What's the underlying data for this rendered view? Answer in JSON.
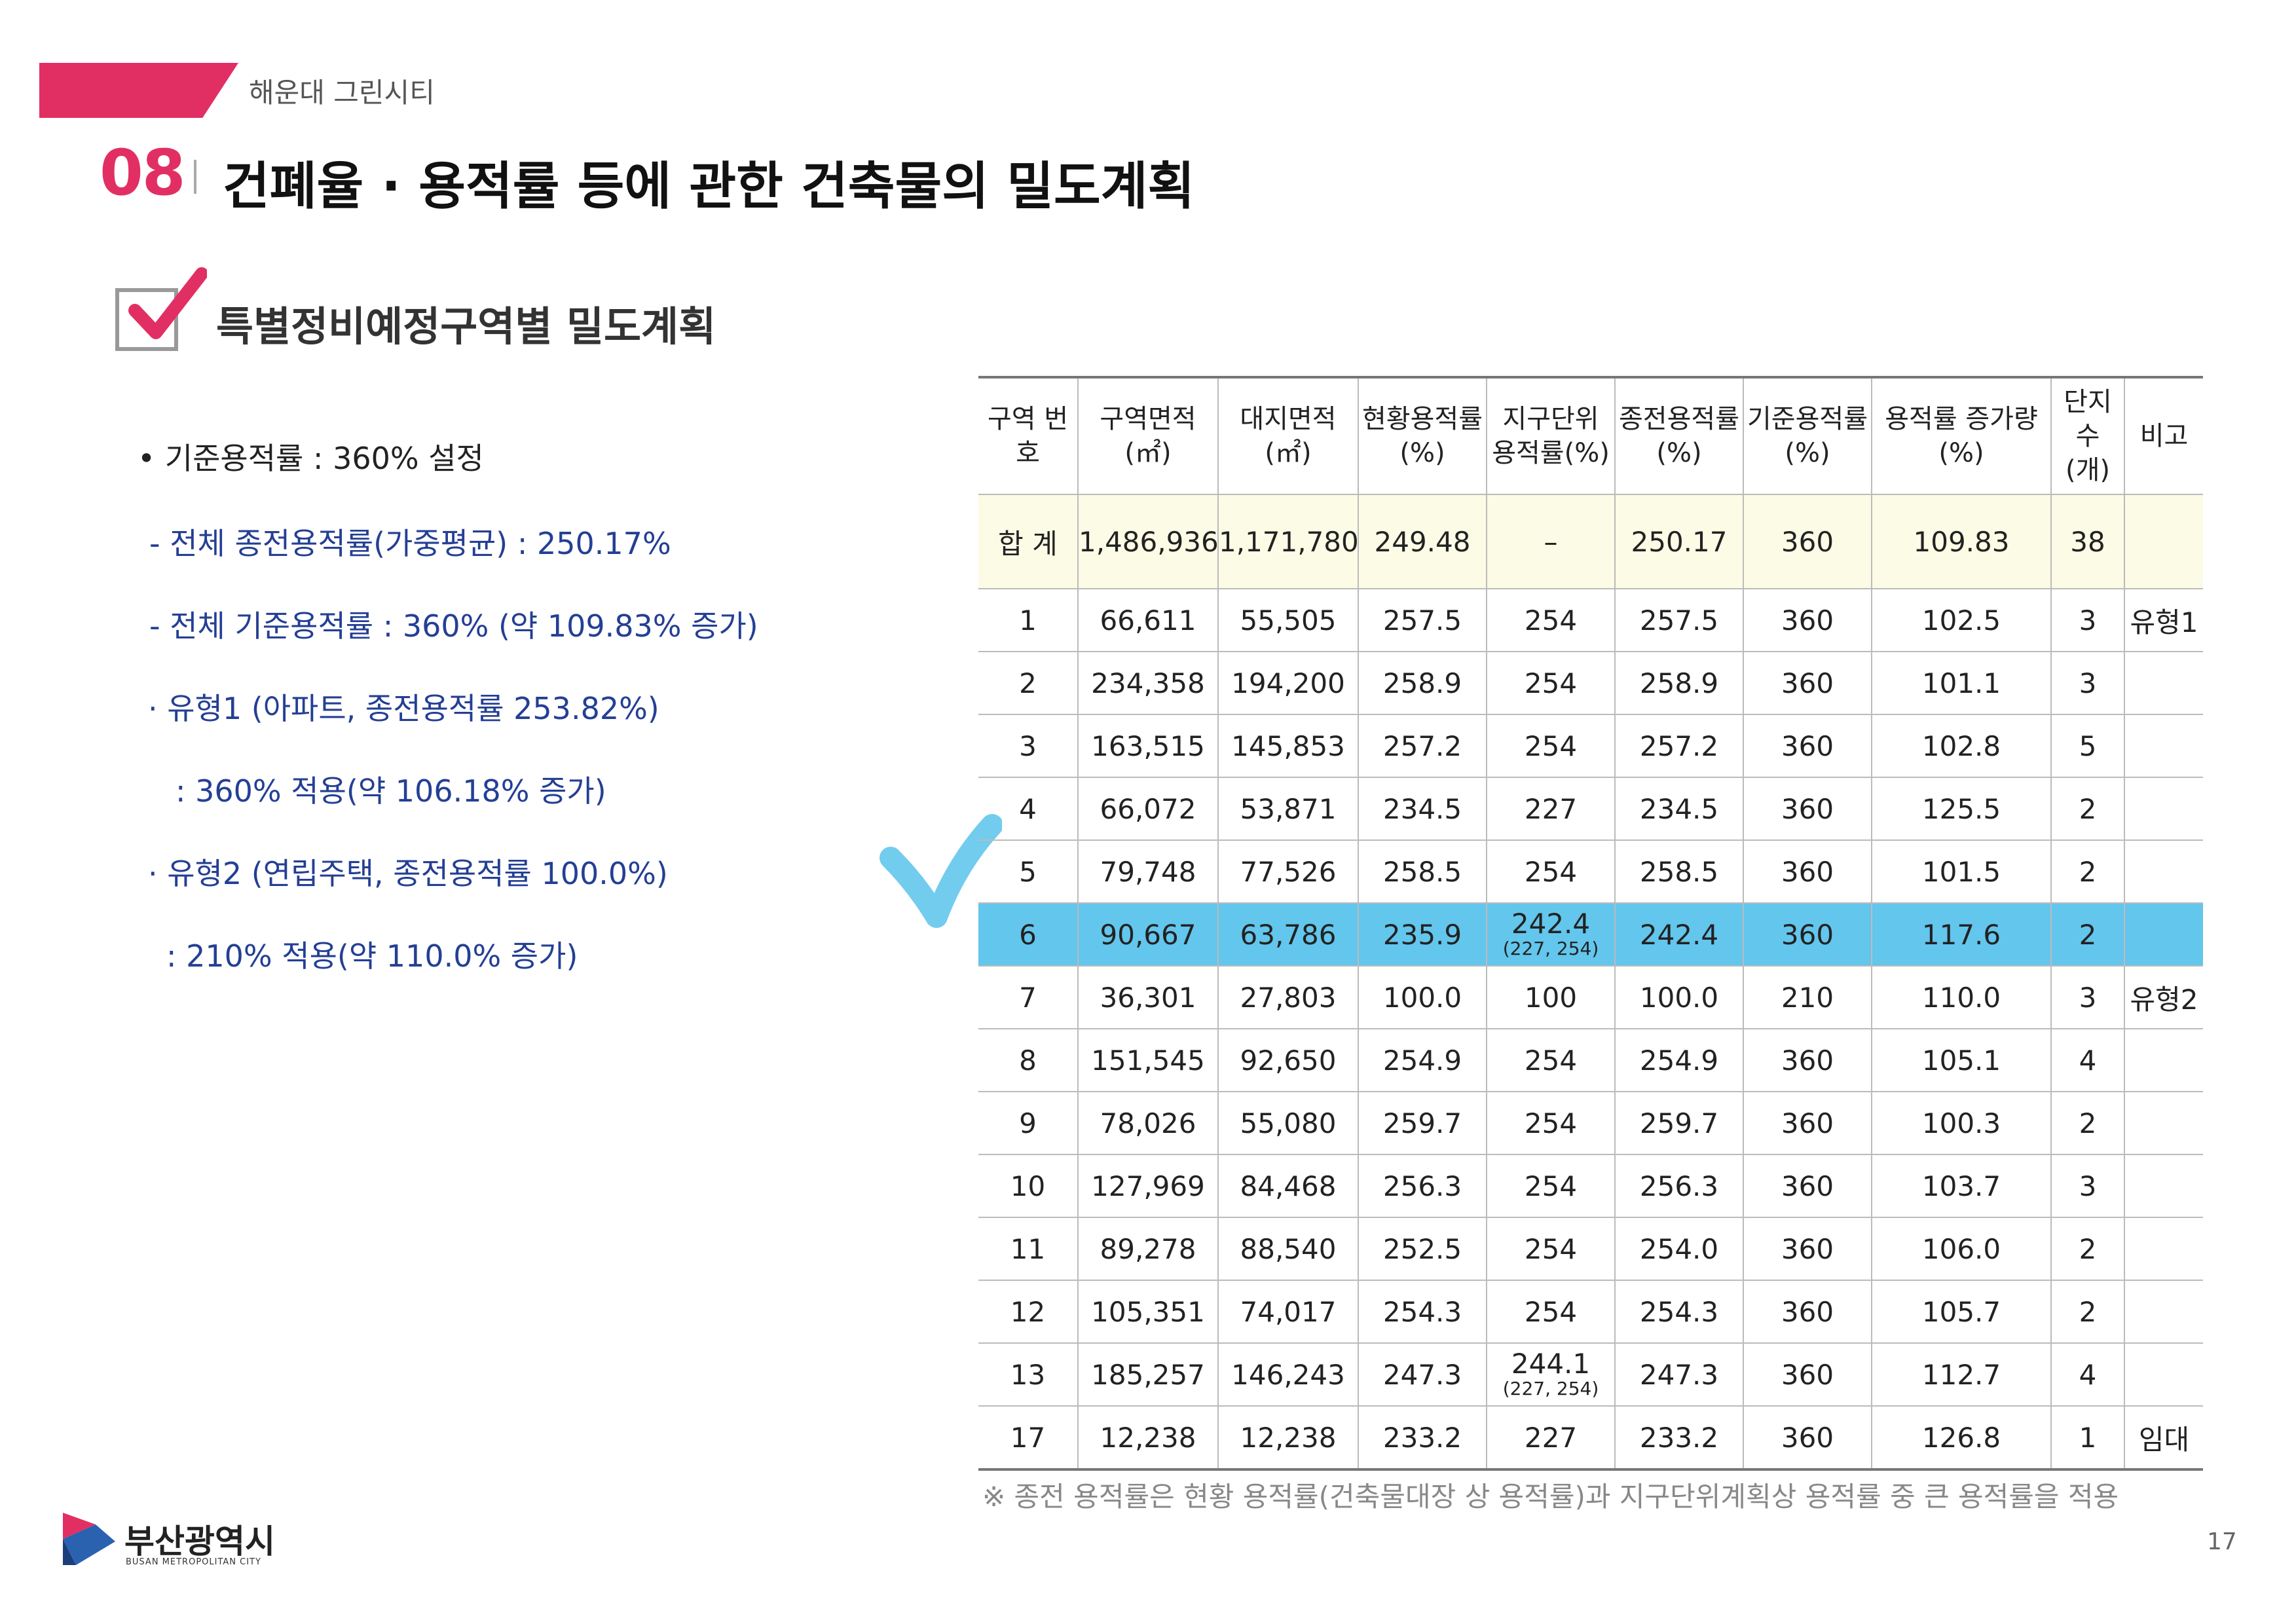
{
  "header": {
    "label": "해운대 그린시티",
    "section_number": "08",
    "section_title": "건폐율 · 용적률 등에 관한 건축물의 밀도계획",
    "accent_color": "#e22f63"
  },
  "subsection": {
    "title": "특별정비예정구역별 밀도계획"
  },
  "notes": [
    "• 기준용적률 :  360% 설정",
    "- 전체 종전용적률(가중평균) : 250.17%",
    "- 전체 기준용적률 : 360% (약 109.83% 증가)",
    "· 유형1 (아파트, 종전용적률 253.82%)",
    ": 360% 적용(약 106.18% 증가)",
    "· 유형2 (연립주택, 종전용적률 100.0%)",
    ": 210% 적용(약 110.0% 증가)"
  ],
  "table": {
    "headers": [
      "구역 번호",
      "구역면적 (㎡)",
      "대지면적 (㎡)",
      "현황용적률 (%)",
      "지구단위 용적률(%)",
      "종전용적률 (%)",
      "기준용적률 (%)",
      "용적률 증가량(%)",
      "단지수 (개)",
      "비고"
    ],
    "total": [
      "합 계",
      "1,486,936",
      "1,171,780",
      "249.48",
      "–",
      "250.17",
      "360",
      "109.83",
      "38",
      ""
    ],
    "rows": [
      {
        "no": "1",
        "area": "66,611",
        "site": "55,505",
        "current": "257.5",
        "district": "254",
        "district_sub": "",
        "prev": "257.5",
        "base": "360",
        "increase": "102.5",
        "count": "3",
        "note": "유형1"
      },
      {
        "no": "2",
        "area": "234,358",
        "site": "194,200",
        "current": "258.9",
        "district": "254",
        "district_sub": "",
        "prev": "258.9",
        "base": "360",
        "increase": "101.1",
        "count": "3",
        "note": ""
      },
      {
        "no": "3",
        "area": "163,515",
        "site": "145,853",
        "current": "257.2",
        "district": "254",
        "district_sub": "",
        "prev": "257.2",
        "base": "360",
        "increase": "102.8",
        "count": "5",
        "note": ""
      },
      {
        "no": "4",
        "area": "66,072",
        "site": "53,871",
        "current": "234.5",
        "district": "227",
        "district_sub": "",
        "prev": "234.5",
        "base": "360",
        "increase": "125.5",
        "count": "2",
        "note": ""
      },
      {
        "no": "5",
        "area": "79,748",
        "site": "77,526",
        "current": "258.5",
        "district": "254",
        "district_sub": "",
        "prev": "258.5",
        "base": "360",
        "increase": "101.5",
        "count": "2",
        "note": ""
      },
      {
        "no": "6",
        "area": "90,667",
        "site": "63,786",
        "current": "235.9",
        "district": "242.4",
        "district_sub": "(227, 254)",
        "prev": "242.4",
        "base": "360",
        "increase": "117.6",
        "count": "2",
        "note": ""
      },
      {
        "no": "7",
        "area": "36,301",
        "site": "27,803",
        "current": "100.0",
        "district": "100",
        "district_sub": "",
        "prev": "100.0",
        "base": "210",
        "increase": "110.0",
        "count": "3",
        "note": "유형2"
      },
      {
        "no": "8",
        "area": "151,545",
        "site": "92,650",
        "current": "254.9",
        "district": "254",
        "district_sub": "",
        "prev": "254.9",
        "base": "360",
        "increase": "105.1",
        "count": "4",
        "note": ""
      },
      {
        "no": "9",
        "area": "78,026",
        "site": "55,080",
        "current": "259.7",
        "district": "254",
        "district_sub": "",
        "prev": "259.7",
        "base": "360",
        "increase": "100.3",
        "count": "2",
        "note": ""
      },
      {
        "no": "10",
        "area": "127,969",
        "site": "84,468",
        "current": "256.3",
        "district": "254",
        "district_sub": "",
        "prev": "256.3",
        "base": "360",
        "increase": "103.7",
        "count": "3",
        "note": ""
      },
      {
        "no": "11",
        "area": "89,278",
        "site": "88,540",
        "current": "252.5",
        "district": "254",
        "district_sub": "",
        "prev": "254.0",
        "base": "360",
        "increase": "106.0",
        "count": "2",
        "note": ""
      },
      {
        "no": "12",
        "area": "105,351",
        "site": "74,017",
        "current": "254.3",
        "district": "254",
        "district_sub": "",
        "prev": "254.3",
        "base": "360",
        "increase": "105.7",
        "count": "2",
        "note": ""
      },
      {
        "no": "13",
        "area": "185,257",
        "site": "146,243",
        "current": "247.3",
        "district": "244.1",
        "district_sub": "(227, 254)",
        "prev": "247.3",
        "base": "360",
        "increase": "112.7",
        "count": "4",
        "note": ""
      },
      {
        "no": "17",
        "area": "12,238",
        "site": "12,238",
        "current": "233.2",
        "district": "227",
        "district_sub": "",
        "prev": "233.2",
        "base": "360",
        "increase": "126.8",
        "count": "1",
        "note": "임대"
      }
    ],
    "highlight_color": "#63c6ec",
    "footnote": "※ 종전 용적률은 현황 용적률(건축물대장 상 용적률)과 지구단위계획상 용적률 중 큰 용적률을 적용"
  },
  "footer": {
    "org_name": "부산광역시",
    "org_name_en": "BUSAN METROPOLITAN CITY",
    "page_number": "17"
  }
}
